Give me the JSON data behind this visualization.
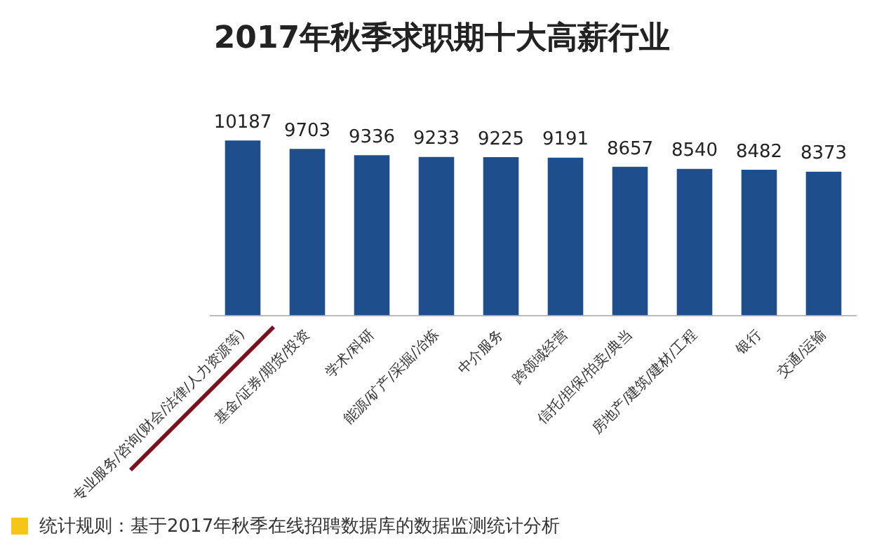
{
  "chart_data": {
    "type": "bar",
    "title": "2017年秋季求职期十大高薪行业",
    "categories": [
      "专业服务/咨询(财会/法律/人力资源等)",
      "基金/证券/期货/投资",
      "学术/科研",
      "能源/矿产/采掘/冶炼",
      "中介服务",
      "跨领域经营",
      "信托/担保/拍卖/典当",
      "房地产/建筑/建材/工程",
      "银行",
      "交通/运输"
    ],
    "values": [
      10187,
      9703,
      9336,
      9233,
      9225,
      9191,
      8657,
      8540,
      8482,
      8373
    ],
    "color": "#1f4e8c",
    "data_labels": true,
    "grid": false,
    "legend": false,
    "annotations": [
      "统计规则：基于2017年秋季在线招聘数据库的数据监测统计分析"
    ]
  }
}
